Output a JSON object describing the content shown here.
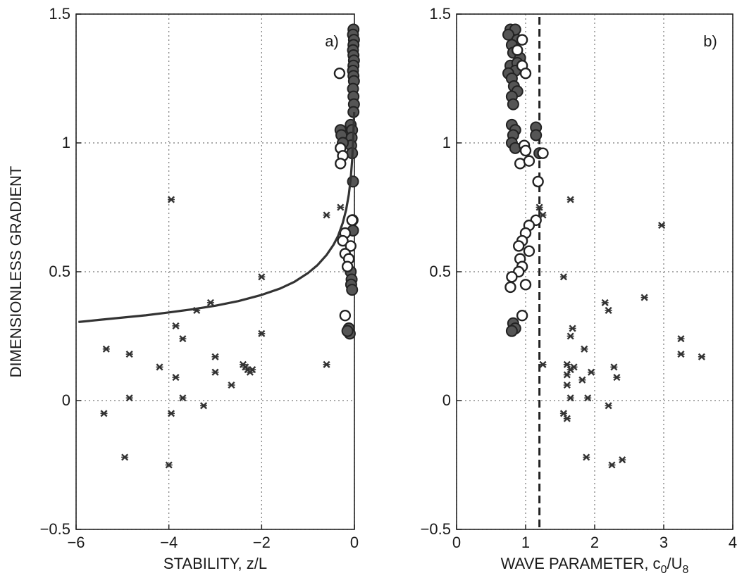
{
  "chart_data": [
    {
      "type": "scatter",
      "panel_label": "a)",
      "xlabel": "STABILITY, z/L",
      "ylabel": "DIMENSIONLESS GRADIENT",
      "xlim": [
        -6,
        0
      ],
      "ylim": [
        -0.5,
        1.5
      ],
      "xticks": [
        -6,
        -4,
        -2,
        0
      ],
      "xtick_labels": [
        "−6",
        "−4",
        "−2",
        "0"
      ],
      "yticks": [
        -0.5,
        0,
        0.5,
        1,
        1.5
      ],
      "ytick_labels": [
        "−0.5",
        "0",
        "0.5",
        "1",
        "1.5"
      ],
      "grid": true,
      "series": [
        {
          "marker": "filled-circle",
          "points": [
            [
              -0.02,
              1.44
            ],
            [
              -0.03,
              1.42
            ],
            [
              -0.01,
              1.4
            ],
            [
              -0.02,
              1.38
            ],
            [
              -0.03,
              1.36
            ],
            [
              -0.02,
              1.34
            ],
            [
              -0.01,
              1.32
            ],
            [
              -0.02,
              1.3
            ],
            [
              -0.03,
              1.28
            ],
            [
              -0.02,
              1.26
            ],
            [
              -0.01,
              1.24
            ],
            [
              -0.03,
              1.21
            ],
            [
              -0.02,
              1.18
            ],
            [
              -0.01,
              1.15
            ],
            [
              -0.02,
              1.12
            ],
            [
              -0.08,
              1.07
            ],
            [
              -0.05,
              1.05
            ],
            [
              -0.06,
              1.02
            ],
            [
              -0.07,
              0.99
            ],
            [
              -0.05,
              0.96
            ],
            [
              -0.3,
              1.05
            ],
            [
              -0.28,
              1.03
            ],
            [
              -0.25,
              1.0
            ],
            [
              -0.03,
              0.85
            ],
            [
              -0.04,
              0.7
            ],
            [
              -0.03,
              0.66
            ],
            [
              -0.08,
              0.5
            ],
            [
              -0.06,
              0.47
            ],
            [
              -0.07,
              0.45
            ],
            [
              -0.05,
              0.43
            ],
            [
              -0.12,
              0.28
            ],
            [
              -0.1,
              0.26
            ],
            [
              -0.15,
              0.27
            ]
          ]
        },
        {
          "marker": "open-circle",
          "points": [
            [
              -0.32,
              1.27
            ],
            [
              -0.3,
              0.98
            ],
            [
              -0.25,
              0.95
            ],
            [
              -0.3,
              0.92
            ],
            [
              -0.05,
              0.7
            ],
            [
              -0.2,
              0.65
            ],
            [
              -0.25,
              0.62
            ],
            [
              -0.08,
              0.6
            ],
            [
              -0.2,
              0.57
            ],
            [
              -0.12,
              0.55
            ],
            [
              -0.15,
              0.52
            ],
            [
              -0.2,
              0.33
            ]
          ]
        },
        {
          "marker": "asterisk",
          "points": [
            [
              -3.95,
              0.78
            ],
            [
              -0.6,
              0.72
            ],
            [
              -0.3,
              0.75
            ],
            [
              -3.1,
              0.38
            ],
            [
              -3.4,
              0.35
            ],
            [
              -2.0,
              0.48
            ],
            [
              -3.85,
              0.29
            ],
            [
              -3.7,
              0.24
            ],
            [
              -2.0,
              0.26
            ],
            [
              -5.35,
              0.2
            ],
            [
              -4.85,
              0.18
            ],
            [
              -3.0,
              0.17
            ],
            [
              -2.4,
              0.14
            ],
            [
              -2.35,
              0.13
            ],
            [
              -2.3,
              0.12
            ],
            [
              -2.25,
              0.11
            ],
            [
              -2.2,
              0.12
            ],
            [
              -4.2,
              0.13
            ],
            [
              -0.6,
              0.14
            ],
            [
              -3.0,
              0.11
            ],
            [
              -3.85,
              0.09
            ],
            [
              -2.65,
              0.06
            ],
            [
              -4.85,
              0.01
            ],
            [
              -3.7,
              0.01
            ],
            [
              -3.25,
              -0.02
            ],
            [
              -5.4,
              -0.05
            ],
            [
              -3.95,
              -0.05
            ],
            [
              -4.95,
              -0.22
            ],
            [
              -4.0,
              -0.25
            ]
          ]
        },
        {
          "type": "line",
          "marker": "curve",
          "x": [
            -5.95,
            -5.5,
            -5.0,
            -4.5,
            -4.0,
            -3.5,
            -3.0,
            -2.5,
            -2.0,
            -1.6,
            -1.3,
            -1.0,
            -0.8,
            -0.6,
            -0.45,
            -0.35,
            -0.25,
            -0.18,
            -0.12,
            -0.08,
            -0.05,
            -0.03,
            -0.015,
            -0.005
          ],
          "y": [
            0.305,
            0.313,
            0.322,
            0.331,
            0.342,
            0.354,
            0.368,
            0.386,
            0.41,
            0.435,
            0.46,
            0.495,
            0.525,
            0.565,
            0.605,
            0.64,
            0.69,
            0.74,
            0.8,
            0.86,
            0.93,
            1.0,
            1.07,
            1.12
          ]
        }
      ]
    },
    {
      "type": "scatter",
      "panel_label": "b)",
      "xlabel": "WAVE PARAMETER, c",
      "xlabel_sub1": "0",
      "xlabel_mid": "/U",
      "xlabel_sub2": "8",
      "xlim": [
        0,
        4
      ],
      "ylim": [
        -0.5,
        1.5
      ],
      "xticks": [
        0,
        1,
        2,
        3,
        4
      ],
      "xtick_labels": [
        "0",
        "1",
        "2",
        "3",
        "4"
      ],
      "yticks": [
        -0.5,
        0,
        0.5,
        1,
        1.5
      ],
      "ytick_labels": [
        "−0.5",
        "0",
        "0.5",
        "1",
        "1.5"
      ],
      "grid": true,
      "vline_x": 1.2,
      "series": [
        {
          "marker": "filled-circle",
          "points": [
            [
              0.78,
              1.44
            ],
            [
              0.85,
              1.44
            ],
            [
              0.75,
              1.42
            ],
            [
              0.88,
              1.4
            ],
            [
              0.8,
              1.38
            ],
            [
              0.82,
              1.35
            ],
            [
              0.92,
              1.33
            ],
            [
              0.78,
              1.3
            ],
            [
              0.88,
              1.31
            ],
            [
              0.85,
              1.28
            ],
            [
              0.75,
              1.27
            ],
            [
              0.8,
              1.25
            ],
            [
              0.83,
              1.22
            ],
            [
              0.88,
              1.2
            ],
            [
              0.8,
              1.18
            ],
            [
              0.82,
              1.15
            ],
            [
              0.8,
              1.07
            ],
            [
              0.85,
              1.05
            ],
            [
              0.82,
              1.03
            ],
            [
              0.8,
              1.0
            ],
            [
              0.85,
              0.98
            ],
            [
              1.15,
              1.06
            ],
            [
              1.15,
              1.03
            ],
            [
              1.2,
              0.96
            ],
            [
              0.82,
              0.3
            ],
            [
              0.85,
              0.28
            ],
            [
              0.8,
              0.27
            ]
          ]
        },
        {
          "marker": "open-circle",
          "points": [
            [
              0.95,
              1.4
            ],
            [
              0.88,
              1.36
            ],
            [
              0.95,
              1.3
            ],
            [
              1.0,
              1.27
            ],
            [
              0.98,
              0.99
            ],
            [
              1.0,
              0.97
            ],
            [
              0.92,
              0.92
            ],
            [
              1.05,
              0.93
            ],
            [
              1.25,
              0.96
            ],
            [
              1.18,
              0.85
            ],
            [
              1.15,
              0.7
            ],
            [
              1.05,
              0.68
            ],
            [
              1.0,
              0.65
            ],
            [
              0.95,
              0.62
            ],
            [
              0.9,
              0.6
            ],
            [
              1.05,
              0.58
            ],
            [
              0.92,
              0.55
            ],
            [
              0.95,
              0.52
            ],
            [
              0.9,
              0.5
            ],
            [
              0.8,
              0.48
            ],
            [
              0.78,
              0.44
            ],
            [
              1.0,
              0.45
            ],
            [
              0.95,
              0.33
            ]
          ]
        },
        {
          "marker": "asterisk",
          "points": [
            [
              1.65,
              0.78
            ],
            [
              1.2,
              0.75
            ],
            [
              1.25,
              0.72
            ],
            [
              2.97,
              0.68
            ],
            [
              1.55,
              0.48
            ],
            [
              2.72,
              0.4
            ],
            [
              2.15,
              0.38
            ],
            [
              2.2,
              0.35
            ],
            [
              1.68,
              0.28
            ],
            [
              1.65,
              0.25
            ],
            [
              3.25,
              0.24
            ],
            [
              1.85,
              0.2
            ],
            [
              3.25,
              0.18
            ],
            [
              3.55,
              0.17
            ],
            [
              1.6,
              0.14
            ],
            [
              1.25,
              0.14
            ],
            [
              1.65,
              0.12
            ],
            [
              1.7,
              0.13
            ],
            [
              2.28,
              0.13
            ],
            [
              1.95,
              0.11
            ],
            [
              1.6,
              0.1
            ],
            [
              2.32,
              0.09
            ],
            [
              1.82,
              0.08
            ],
            [
              1.6,
              0.06
            ],
            [
              1.9,
              0.01
            ],
            [
              1.65,
              0.01
            ],
            [
              2.2,
              -0.02
            ],
            [
              1.55,
              -0.05
            ],
            [
              1.6,
              -0.07
            ],
            [
              1.88,
              -0.22
            ],
            [
              2.4,
              -0.23
            ],
            [
              2.25,
              -0.25
            ]
          ]
        }
      ]
    }
  ]
}
